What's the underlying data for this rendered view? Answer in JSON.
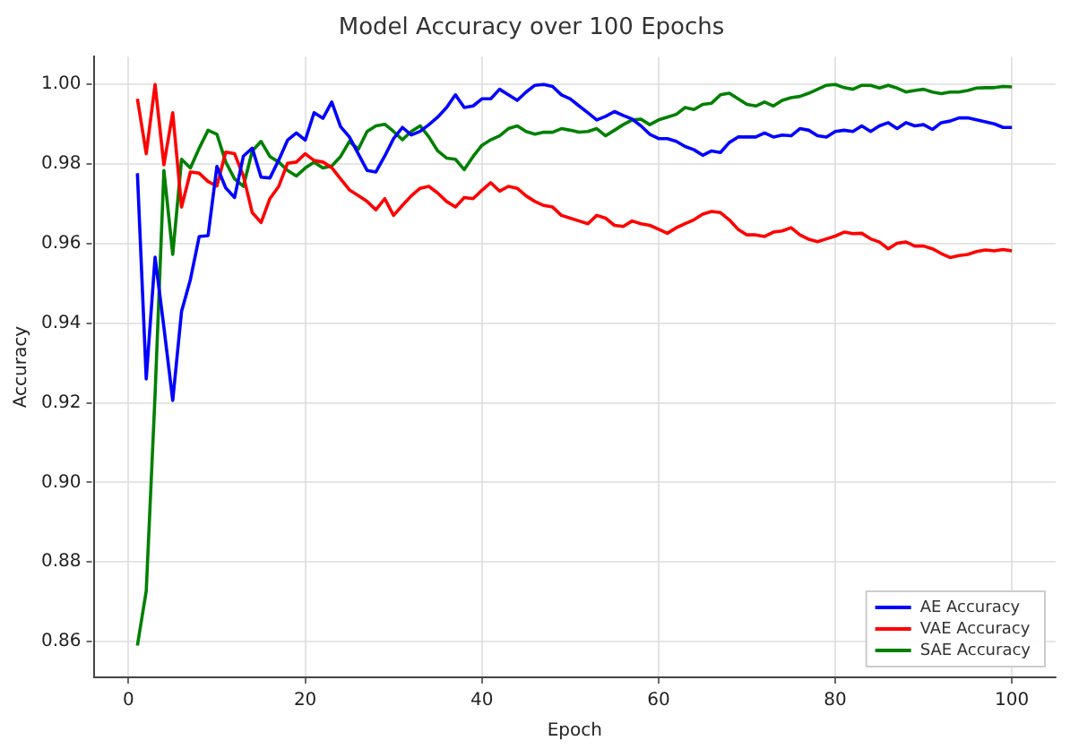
{
  "chart_data": {
    "type": "line",
    "title": "Model Accuracy over 100 Epochs",
    "xlabel": "Epoch",
    "ylabel": "Accuracy",
    "x": [
      1,
      2,
      3,
      4,
      5,
      6,
      7,
      8,
      9,
      10,
      11,
      12,
      13,
      14,
      15,
      16,
      17,
      18,
      19,
      20,
      21,
      22,
      23,
      24,
      25,
      26,
      27,
      28,
      29,
      30,
      31,
      32,
      33,
      34,
      35,
      36,
      37,
      38,
      39,
      40,
      41,
      42,
      43,
      44,
      45,
      46,
      47,
      48,
      49,
      50,
      51,
      52,
      53,
      54,
      55,
      56,
      57,
      58,
      59,
      60,
      61,
      62,
      63,
      64,
      65,
      66,
      67,
      68,
      69,
      70,
      71,
      72,
      73,
      74,
      75,
      76,
      77,
      78,
      79,
      80,
      81,
      82,
      83,
      84,
      85,
      86,
      87,
      88,
      89,
      90,
      91,
      92,
      93,
      94,
      95,
      96,
      97,
      98,
      99,
      100
    ],
    "series": [
      {
        "name": "AE Accuracy",
        "color": "#0000ff",
        "values": [
          0.9777,
          0.926,
          0.9566,
          0.939,
          0.9206,
          0.943,
          0.951,
          0.9618,
          0.962,
          0.9794,
          0.974,
          0.9716,
          0.982,
          0.984,
          0.9767,
          0.9765,
          0.981,
          0.986,
          0.9878,
          0.986,
          0.9929,
          0.9915,
          0.9956,
          0.9894,
          0.9868,
          0.9826,
          0.9784,
          0.978,
          0.982,
          0.9864,
          0.9892,
          0.9873,
          0.9882,
          0.9899,
          0.9918,
          0.9942,
          0.9974,
          0.9942,
          0.9946,
          0.9964,
          0.9964,
          0.9988,
          0.9974,
          0.996,
          0.9981,
          0.9998,
          1.0,
          0.9995,
          0.9974,
          0.9964,
          0.9946,
          0.9929,
          0.9911,
          0.992,
          0.9932,
          0.9922,
          0.9913,
          0.9896,
          0.9875,
          0.9864,
          0.9864,
          0.9857,
          0.9844,
          0.9836,
          0.9822,
          0.9833,
          0.9829,
          0.9854,
          0.9868,
          0.9868,
          0.9868,
          0.9878,
          0.9868,
          0.9873,
          0.9871,
          0.9889,
          0.9885,
          0.9871,
          0.9868,
          0.9882,
          0.9885,
          0.9882,
          0.9896,
          0.9882,
          0.9896,
          0.9904,
          0.9889,
          0.9904,
          0.9896,
          0.9899,
          0.9887,
          0.9904,
          0.9908,
          0.9916,
          0.9916,
          0.9911,
          0.9906,
          0.9901,
          0.9892,
          0.9892
        ]
      },
      {
        "name": "VAE Accuracy",
        "color": "#ff0000",
        "values": [
          0.9964,
          0.9826,
          1.0,
          0.9798,
          0.9929,
          0.9692,
          0.978,
          0.9777,
          0.9756,
          0.9745,
          0.983,
          0.9826,
          0.977,
          0.9678,
          0.9653,
          0.9713,
          0.9744,
          0.9802,
          0.9805,
          0.9826,
          0.9809,
          0.9805,
          0.9791,
          0.9763,
          0.9735,
          0.9721,
          0.9706,
          0.9685,
          0.9713,
          0.9671,
          0.9696,
          0.972,
          0.9739,
          0.9744,
          0.9727,
          0.9706,
          0.9692,
          0.9716,
          0.9713,
          0.9734,
          0.9753,
          0.9732,
          0.9744,
          0.9739,
          0.972,
          0.9706,
          0.9696,
          0.9692,
          0.9671,
          0.9664,
          0.9657,
          0.965,
          0.9671,
          0.9664,
          0.9646,
          0.9643,
          0.9657,
          0.965,
          0.9646,
          0.9636,
          0.9626,
          0.964,
          0.965,
          0.966,
          0.9674,
          0.9681,
          0.9678,
          0.966,
          0.9636,
          0.9622,
          0.9622,
          0.9618,
          0.9629,
          0.9632,
          0.964,
          0.9622,
          0.9611,
          0.9605,
          0.9612,
          0.9619,
          0.9629,
          0.9625,
          0.9626,
          0.9612,
          0.9604,
          0.9587,
          0.9601,
          0.9604,
          0.9594,
          0.9594,
          0.9587,
          0.9575,
          0.9565,
          0.957,
          0.9573,
          0.958,
          0.9584,
          0.9582,
          0.9585,
          0.9582
        ]
      },
      {
        "name": "SAE Accuracy",
        "color": "#008000",
        "values": [
          0.859,
          0.8727,
          0.922,
          0.9784,
          0.9573,
          0.9812,
          0.979,
          0.984,
          0.9885,
          0.9875,
          0.9805,
          0.9763,
          0.9744,
          0.9833,
          0.9857,
          0.9819,
          0.9805,
          0.9784,
          0.977,
          0.979,
          0.9805,
          0.979,
          0.9795,
          0.9819,
          0.9857,
          0.9837,
          0.9882,
          0.9896,
          0.99,
          0.9882,
          0.9861,
          0.9882,
          0.9896,
          0.9868,
          0.9833,
          0.9815,
          0.9812,
          0.9786,
          0.9819,
          0.9847,
          0.9861,
          0.9871,
          0.9889,
          0.9896,
          0.9882,
          0.9875,
          0.988,
          0.988,
          0.9889,
          0.9885,
          0.988,
          0.9882,
          0.9889,
          0.9871,
          0.9885,
          0.9899,
          0.9911,
          0.9913,
          0.9899,
          0.9911,
          0.9918,
          0.9925,
          0.9942,
          0.9937,
          0.995,
          0.9953,
          0.9974,
          0.9978,
          0.9964,
          0.995,
          0.9946,
          0.9956,
          0.9946,
          0.996,
          0.9967,
          0.997,
          0.9978,
          0.9988,
          0.9998,
          1.0,
          0.9992,
          0.9988,
          0.9998,
          0.9998,
          0.9991,
          0.9998,
          0.9991,
          0.9981,
          0.9985,
          0.9988,
          0.9981,
          0.9977,
          0.9981,
          0.9981,
          0.9985,
          0.9991,
          0.9992,
          0.9992,
          0.9995,
          0.9994
        ]
      }
    ],
    "xlim": [
      -3.95,
      104.95
    ],
    "ylim": [
      0.851,
      1.007
    ],
    "xticks": [
      0,
      20,
      40,
      60,
      80,
      100
    ],
    "yticks": [
      {
        "value": 0.86,
        "label": "0.86"
      },
      {
        "value": 0.88,
        "label": "0.88"
      },
      {
        "value": 0.9,
        "label": "0.90"
      },
      {
        "value": 0.92,
        "label": "0.92"
      },
      {
        "value": 0.94,
        "label": "0.94"
      },
      {
        "value": 0.96,
        "label": "0.96"
      },
      {
        "value": 0.98,
        "label": "0.98"
      },
      {
        "value": 1.0,
        "label": "1.00"
      }
    ],
    "grid": true,
    "legend": "bottom right",
    "marker": "none",
    "line_style": "solid"
  }
}
